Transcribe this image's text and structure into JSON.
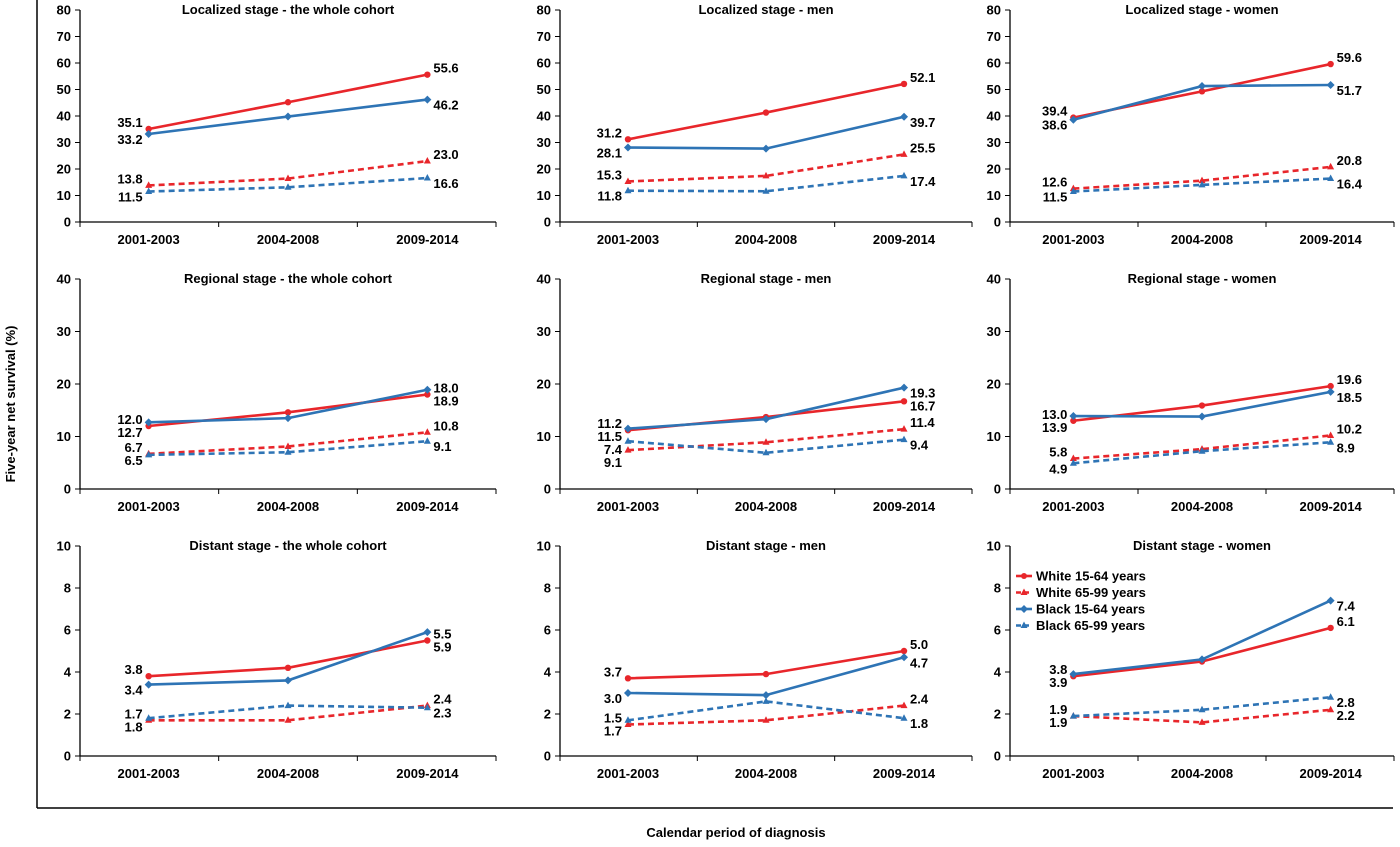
{
  "figure": {
    "y_axis_label": "Five-year net survival (%)",
    "x_axis_label": "Calendar period of diagnosis"
  },
  "colors": {
    "white": "#e8262b",
    "black": "#2e74b5",
    "axis": "#000000"
  },
  "legend_placement": "inside-top-left of last panel",
  "chart_data": [
    {
      "type": "line",
      "title": "Localized stage - the whole cohort",
      "categories": [
        "2001-2003",
        "2004-2008",
        "2009-2014"
      ],
      "ylim": [
        0,
        80
      ],
      "yticks": [
        0,
        10,
        20,
        30,
        40,
        50,
        60,
        70,
        80
      ],
      "series": [
        {
          "values": [
            35.1,
            45.2,
            55.6
          ],
          "labels": [
            "35.1",
            "",
            "55.6"
          ]
        },
        {
          "values": [
            13.8,
            16.4,
            23.0
          ],
          "labels": [
            "13.8",
            "",
            "23.0"
          ]
        },
        {
          "values": [
            33.2,
            39.8,
            46.2
          ],
          "labels": [
            "33.2",
            "",
            "46.2"
          ]
        },
        {
          "values": [
            11.5,
            13.1,
            16.6
          ],
          "labels": [
            "11.5",
            "",
            "16.6"
          ]
        }
      ]
    },
    {
      "type": "line",
      "title": "Localized stage - men",
      "categories": [
        "2001-2003",
        "2004-2008",
        "2009-2014"
      ],
      "ylim": [
        0,
        80
      ],
      "yticks": [
        0,
        10,
        20,
        30,
        40,
        50,
        60,
        70,
        80
      ],
      "series": [
        {
          "values": [
            31.2,
            41.3,
            52.1
          ],
          "labels": [
            "31.2",
            "",
            "52.1"
          ]
        },
        {
          "values": [
            15.3,
            17.4,
            25.5
          ],
          "labels": [
            "15.3",
            "",
            "25.5"
          ]
        },
        {
          "values": [
            28.1,
            27.7,
            39.7
          ],
          "labels": [
            "28.1",
            "",
            "39.7"
          ]
        },
        {
          "values": [
            11.8,
            11.6,
            17.4
          ],
          "labels": [
            "11.8",
            "",
            "17.4"
          ]
        }
      ]
    },
    {
      "type": "line",
      "title": "Localized stage - women",
      "categories": [
        "2001-2003",
        "2004-2008",
        "2009-2014"
      ],
      "ylim": [
        0,
        80
      ],
      "yticks": [
        0,
        10,
        20,
        30,
        40,
        50,
        60,
        70,
        80
      ],
      "series": [
        {
          "values": [
            39.4,
            49.3,
            59.6
          ],
          "labels": [
            "39.4",
            "",
            "59.6"
          ]
        },
        {
          "values": [
            12.6,
            15.6,
            20.8
          ],
          "labels": [
            "12.6",
            "",
            "20.8"
          ]
        },
        {
          "values": [
            38.6,
            51.3,
            51.7
          ],
          "labels": [
            "38.6",
            "",
            "51.7"
          ]
        },
        {
          "values": [
            11.5,
            14.0,
            16.4
          ],
          "labels": [
            "11.5",
            "",
            "16.4"
          ]
        }
      ]
    },
    {
      "type": "line",
      "title": "Regional stage - the whole cohort",
      "categories": [
        "2001-2003",
        "2004-2008",
        "2009-2014"
      ],
      "ylim": [
        0,
        40
      ],
      "yticks": [
        0,
        10,
        20,
        30,
        40
      ],
      "series": [
        {
          "values": [
            12.0,
            14.6,
            18.0
          ],
          "labels": [
            "12.0",
            "",
            "18.0"
          ]
        },
        {
          "values": [
            6.7,
            8.1,
            10.8
          ],
          "labels": [
            "6.7",
            "",
            "10.8"
          ]
        },
        {
          "values": [
            12.7,
            13.5,
            18.9
          ],
          "labels": [
            "12.7",
            "",
            "18.9"
          ]
        },
        {
          "values": [
            6.5,
            7.0,
            9.1
          ],
          "labels": [
            "6.5",
            "",
            "9.1"
          ]
        }
      ]
    },
    {
      "type": "line",
      "title": "Regional stage - men",
      "categories": [
        "2001-2003",
        "2004-2008",
        "2009-2014"
      ],
      "ylim": [
        0,
        40
      ],
      "yticks": [
        0,
        10,
        20,
        30,
        40
      ],
      "series": [
        {
          "values": [
            11.2,
            13.7,
            16.7
          ],
          "labels": [
            "11.2",
            "",
            "16.7"
          ]
        },
        {
          "values": [
            7.4,
            8.9,
            11.4
          ],
          "labels": [
            "7.4",
            "",
            "11.4"
          ]
        },
        {
          "values": [
            11.5,
            13.3,
            19.3
          ],
          "labels": [
            "11.5",
            "",
            "19.3"
          ]
        },
        {
          "values": [
            9.1,
            6.9,
            9.4
          ],
          "labels": [
            "9.1",
            "",
            "9.4"
          ]
        }
      ]
    },
    {
      "type": "line",
      "title": "Regional stage - women",
      "categories": [
        "2001-2003",
        "2004-2008",
        "2009-2014"
      ],
      "ylim": [
        0,
        40
      ],
      "yticks": [
        0,
        10,
        20,
        30,
        40
      ],
      "series": [
        {
          "values": [
            13.0,
            15.9,
            19.6
          ],
          "labels": [
            "13.0",
            "",
            "19.6"
          ]
        },
        {
          "values": [
            5.8,
            7.6,
            10.2
          ],
          "labels": [
            "5.8",
            "",
            "10.2"
          ]
        },
        {
          "values": [
            13.9,
            13.8,
            18.5
          ],
          "labels": [
            "13.9",
            "",
            "18.5"
          ]
        },
        {
          "values": [
            4.9,
            7.2,
            8.9
          ],
          "labels": [
            "4.9",
            "",
            "8.9"
          ]
        }
      ]
    },
    {
      "type": "line",
      "title": "Distant stage - the whole cohort",
      "categories": [
        "2001-2003",
        "2004-2008",
        "2009-2014"
      ],
      "ylim": [
        0,
        10
      ],
      "yticks": [
        0,
        2,
        4,
        6,
        8,
        10
      ],
      "series": [
        {
          "values": [
            3.8,
            4.2,
            5.5
          ],
          "labels": [
            "3.8",
            "",
            "5.5"
          ]
        },
        {
          "values": [
            1.7,
            1.7,
            2.4
          ],
          "labels": [
            "1.7",
            "",
            "2.4"
          ]
        },
        {
          "values": [
            3.4,
            3.6,
            5.9
          ],
          "labels": [
            "3.4",
            "",
            "5.9"
          ]
        },
        {
          "values": [
            1.8,
            2.4,
            2.3
          ],
          "labels": [
            "1.8",
            "",
            "2.3"
          ]
        }
      ]
    },
    {
      "type": "line",
      "title": "Distant stage - men",
      "categories": [
        "2001-2003",
        "2004-2008",
        "2009-2014"
      ],
      "ylim": [
        0,
        10
      ],
      "yticks": [
        0,
        2,
        4,
        6,
        8,
        10
      ],
      "series": [
        {
          "values": [
            3.7,
            3.9,
            5.0
          ],
          "labels": [
            "3.7",
            "",
            "5.0"
          ]
        },
        {
          "values": [
            1.5,
            1.7,
            2.4
          ],
          "labels": [
            "1.5",
            "",
            "2.4"
          ]
        },
        {
          "values": [
            3.0,
            2.9,
            4.7
          ],
          "labels": [
            "3.0",
            "",
            "4.7"
          ]
        },
        {
          "values": [
            1.7,
            2.6,
            1.8
          ],
          "labels": [
            "1.7",
            "",
            "1.8"
          ]
        }
      ]
    },
    {
      "type": "line",
      "title": "Distant stage - women",
      "categories": [
        "2001-2003",
        "2004-2008",
        "2009-2014"
      ],
      "ylim": [
        0,
        10
      ],
      "yticks": [
        0,
        2,
        4,
        6,
        8,
        10
      ],
      "legend": [
        "White 15-64 years",
        "White 65-99 years",
        "Black 15-64 years",
        "Black 65-99 years"
      ],
      "series": [
        {
          "name": "White 15-64 years",
          "values": [
            3.8,
            4.5,
            6.1
          ],
          "labels": [
            "3.8",
            "",
            "6.1"
          ]
        },
        {
          "name": "White 65-99 years",
          "values": [
            1.9,
            1.6,
            2.2
          ],
          "labels": [
            "1.9",
            "",
            "2.2"
          ]
        },
        {
          "name": "Black 15-64 years",
          "values": [
            3.9,
            4.6,
            7.4
          ],
          "labels": [
            "3.9",
            "",
            "7.4"
          ]
        },
        {
          "name": "Black 65-99 years",
          "values": [
            1.9,
            2.2,
            2.8
          ],
          "labels": [
            "1.9",
            "",
            "2.8"
          ]
        }
      ]
    }
  ]
}
